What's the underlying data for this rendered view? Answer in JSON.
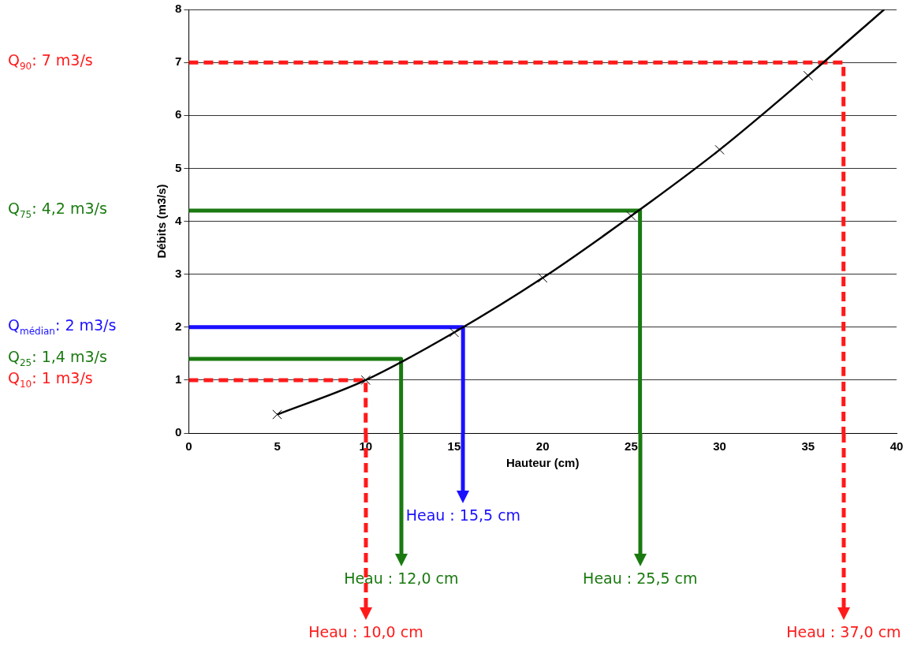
{
  "chart_data": {
    "type": "line",
    "xlabel": "Hauteur (cm)",
    "ylabel": "Débits (m3/s)",
    "xlim": [
      0,
      40
    ],
    "xticks": [
      0,
      5,
      10,
      15,
      20,
      25,
      30,
      35,
      40
    ],
    "ylim": [
      0,
      8
    ],
    "yticks": [
      0,
      1,
      2,
      3,
      4,
      5,
      6,
      7,
      8
    ],
    "grid": "y",
    "legend": false,
    "series": [
      {
        "type": "line",
        "color": "#000000",
        "marker": "none",
        "x": [
          5,
          10,
          15,
          20,
          25,
          30,
          35,
          39.3
        ],
        "values": [
          0.35,
          1.0,
          1.9,
          2.93,
          4.1,
          5.35,
          6.75,
          8
        ]
      },
      {
        "type": "scatter",
        "color": "#000000",
        "marker": "cross",
        "x": [
          5,
          10,
          15,
          20,
          25,
          30,
          35
        ],
        "values": [
          0.35,
          1.0,
          1.9,
          2.93,
          4.1,
          5.35,
          6.75
        ]
      },
      {
        "type": "line",
        "color": "#ff1a1a",
        "line_style": "dashed",
        "x": [
          0,
          37,
          37
        ],
        "values": [
          7,
          7,
          0
        ]
      },
      {
        "type": "line",
        "color": "#1a7a10",
        "x": [
          0,
          25.5,
          25.5
        ],
        "values": [
          4.2,
          4.2,
          0
        ]
      },
      {
        "type": "line",
        "color": "#1a10ff",
        "x": [
          0,
          15.5,
          15.5
        ],
        "values": [
          2,
          2,
          0
        ]
      },
      {
        "type": "line",
        "color": "#1a7a10",
        "x": [
          0,
          12,
          12
        ],
        "values": [
          1.4,
          1.4,
          0
        ]
      },
      {
        "type": "line",
        "color": "#ff1a1a",
        "line_style": "dashed",
        "x": [
          0,
          10,
          10
        ],
        "values": [
          1,
          1,
          0
        ]
      }
    ],
    "annotations": [
      "Q$_{90}$: 7 m3/s",
      "Q$_{75}$: 4,2 m3/s",
      "Q$_{médian}$: 2 m3/s",
      "Q$_{25}$: 1,4 m3/s",
      "Q$_{10}$: 1 m3/s",
      {
        "text": "Heau : 15,5 cm",
        "x": 15.5,
        "y": 0
      },
      {
        "text": "Heau : 12,0 cm",
        "x": 12,
        "y": 0
      },
      {
        "text": "Heau : 25,5 cm",
        "x": 25.5,
        "y": 0
      },
      {
        "text": "Heau : 10,0 cm",
        "x": 10,
        "y": 0
      },
      {
        "text": "Heau : 37,0 cm",
        "x": 37,
        "y": 0
      }
    ]
  }
}
